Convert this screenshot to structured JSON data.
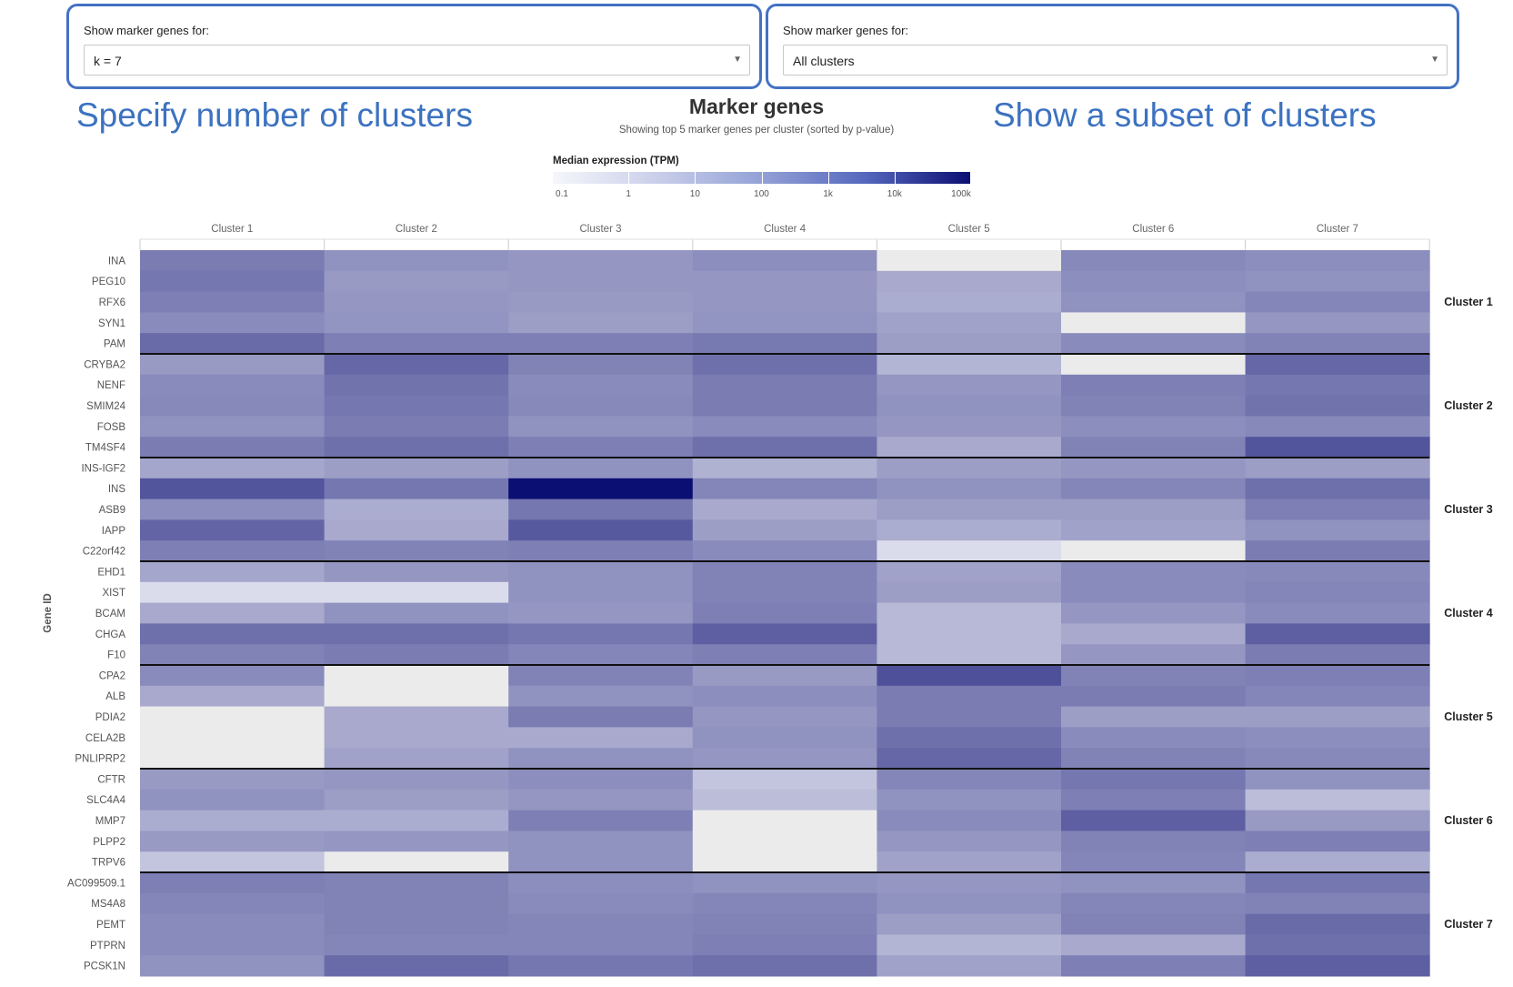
{
  "filters": {
    "k": {
      "label": "Show marker genes for:",
      "value": "k = 7"
    },
    "clusters": {
      "label": "Show marker genes for:",
      "value": "All clusters"
    }
  },
  "callouts": {
    "left": "Specify number of clusters",
    "right": "Show a subset of clusters"
  },
  "icons": {
    "dropdown": "chevron-down-icon"
  },
  "chart_data": {
    "type": "heatmap",
    "title": "Marker genes",
    "subtitle": "Showing top 5 marker genes per cluster (sorted by p-value)",
    "ylabel": "Gene ID",
    "legend": {
      "title": "Median expression (TPM)",
      "ticks": [
        "0.1",
        "1",
        "10",
        "100",
        "1k",
        "10k",
        "100k"
      ],
      "range": [
        0.1,
        100000
      ],
      "scale": "log",
      "colors": [
        "#f6f7fb",
        "#0b0e72"
      ],
      "placement": "top"
    },
    "columns": [
      "Cluster 1",
      "Cluster 2",
      "Cluster 3",
      "Cluster 4",
      "Cluster 5",
      "Cluster 6",
      "Cluster 7"
    ],
    "groups": [
      {
        "name": "Cluster 1",
        "genes": [
          "INA",
          "PEG10",
          "RFX6",
          "SYN1",
          "PAM"
        ]
      },
      {
        "name": "Cluster 2",
        "genes": [
          "CRYBA2",
          "NENF",
          "SMIM24",
          "FOSB",
          "TM4SF4"
        ]
      },
      {
        "name": "Cluster 3",
        "genes": [
          "INS-IGF2",
          "INS",
          "ASB9",
          "IAPP",
          "C22orf42"
        ]
      },
      {
        "name": "Cluster 4",
        "genes": [
          "EHD1",
          "XIST",
          "BCAM",
          "CHGA",
          "F10"
        ]
      },
      {
        "name": "Cluster 5",
        "genes": [
          "CPA2",
          "ALB",
          "PDIA2",
          "CELA2B",
          "PNLIPRP2"
        ]
      },
      {
        "name": "Cluster 6",
        "genes": [
          "CFTR",
          "SLC4A4",
          "MMP7",
          "PLPP2",
          "TRPV6"
        ]
      },
      {
        "name": "Cluster 7",
        "genes": [
          "AC099509.1",
          "MS4A8",
          "PEMT",
          "PTPRN",
          "PCSK1N"
        ]
      }
    ],
    "no_data_color": "#ebebeb",
    "values": [
      [
        150,
        40,
        30,
        50,
        null,
        70,
        50
      ],
      [
        200,
        25,
        30,
        30,
        10,
        50,
        40
      ],
      [
        120,
        30,
        25,
        30,
        8,
        40,
        80
      ],
      [
        60,
        35,
        20,
        35,
        15,
        null,
        30
      ],
      [
        400,
        120,
        120,
        180,
        20,
        60,
        100
      ],
      [
        25,
        500,
        100,
        300,
        5,
        null,
        500
      ],
      [
        60,
        250,
        60,
        150,
        30,
        120,
        200
      ],
      [
        70,
        200,
        70,
        150,
        40,
        100,
        250
      ],
      [
        40,
        150,
        40,
        60,
        30,
        50,
        70
      ],
      [
        150,
        300,
        120,
        300,
        10,
        100,
        1500
      ],
      [
        12,
        20,
        40,
        6,
        20,
        30,
        20
      ],
      [
        1500,
        200,
        100000,
        80,
        40,
        80,
        300
      ],
      [
        50,
        8,
        200,
        10,
        20,
        20,
        120
      ],
      [
        600,
        10,
        1200,
        20,
        8,
        15,
        40
      ],
      [
        120,
        100,
        120,
        60,
        0.5,
        null,
        150
      ],
      [
        12,
        30,
        40,
        100,
        15,
        60,
        70
      ],
      [
        0.5,
        0.5,
        40,
        100,
        20,
        60,
        80
      ],
      [
        10,
        40,
        30,
        120,
        4,
        30,
        60
      ],
      [
        300,
        300,
        200,
        800,
        4,
        10,
        800
      ],
      [
        100,
        150,
        80,
        120,
        4,
        30,
        150
      ],
      [
        60,
        null,
        100,
        25,
        2000,
        100,
        120
      ],
      [
        10,
        null,
        40,
        50,
        150,
        150,
        80
      ],
      [
        null,
        10,
        150,
        30,
        150,
        20,
        20
      ],
      [
        null,
        10,
        10,
        40,
        300,
        60,
        50
      ],
      [
        null,
        15,
        40,
        30,
        500,
        100,
        70
      ],
      [
        25,
        30,
        50,
        2,
        80,
        200,
        40
      ],
      [
        40,
        20,
        30,
        3,
        40,
        120,
        3
      ],
      [
        8,
        8,
        120,
        null,
        60,
        800,
        25
      ],
      [
        25,
        30,
        40,
        null,
        30,
        100,
        120
      ],
      [
        2,
        null,
        40,
        null,
        15,
        80,
        8
      ],
      [
        120,
        100,
        50,
        40,
        30,
        40,
        200
      ],
      [
        80,
        100,
        60,
        80,
        40,
        80,
        100
      ],
      [
        60,
        100,
        80,
        100,
        20,
        100,
        400
      ],
      [
        60,
        80,
        80,
        120,
        5,
        10,
        300
      ],
      [
        40,
        400,
        200,
        300,
        15,
        120,
        800
      ]
    ]
  }
}
